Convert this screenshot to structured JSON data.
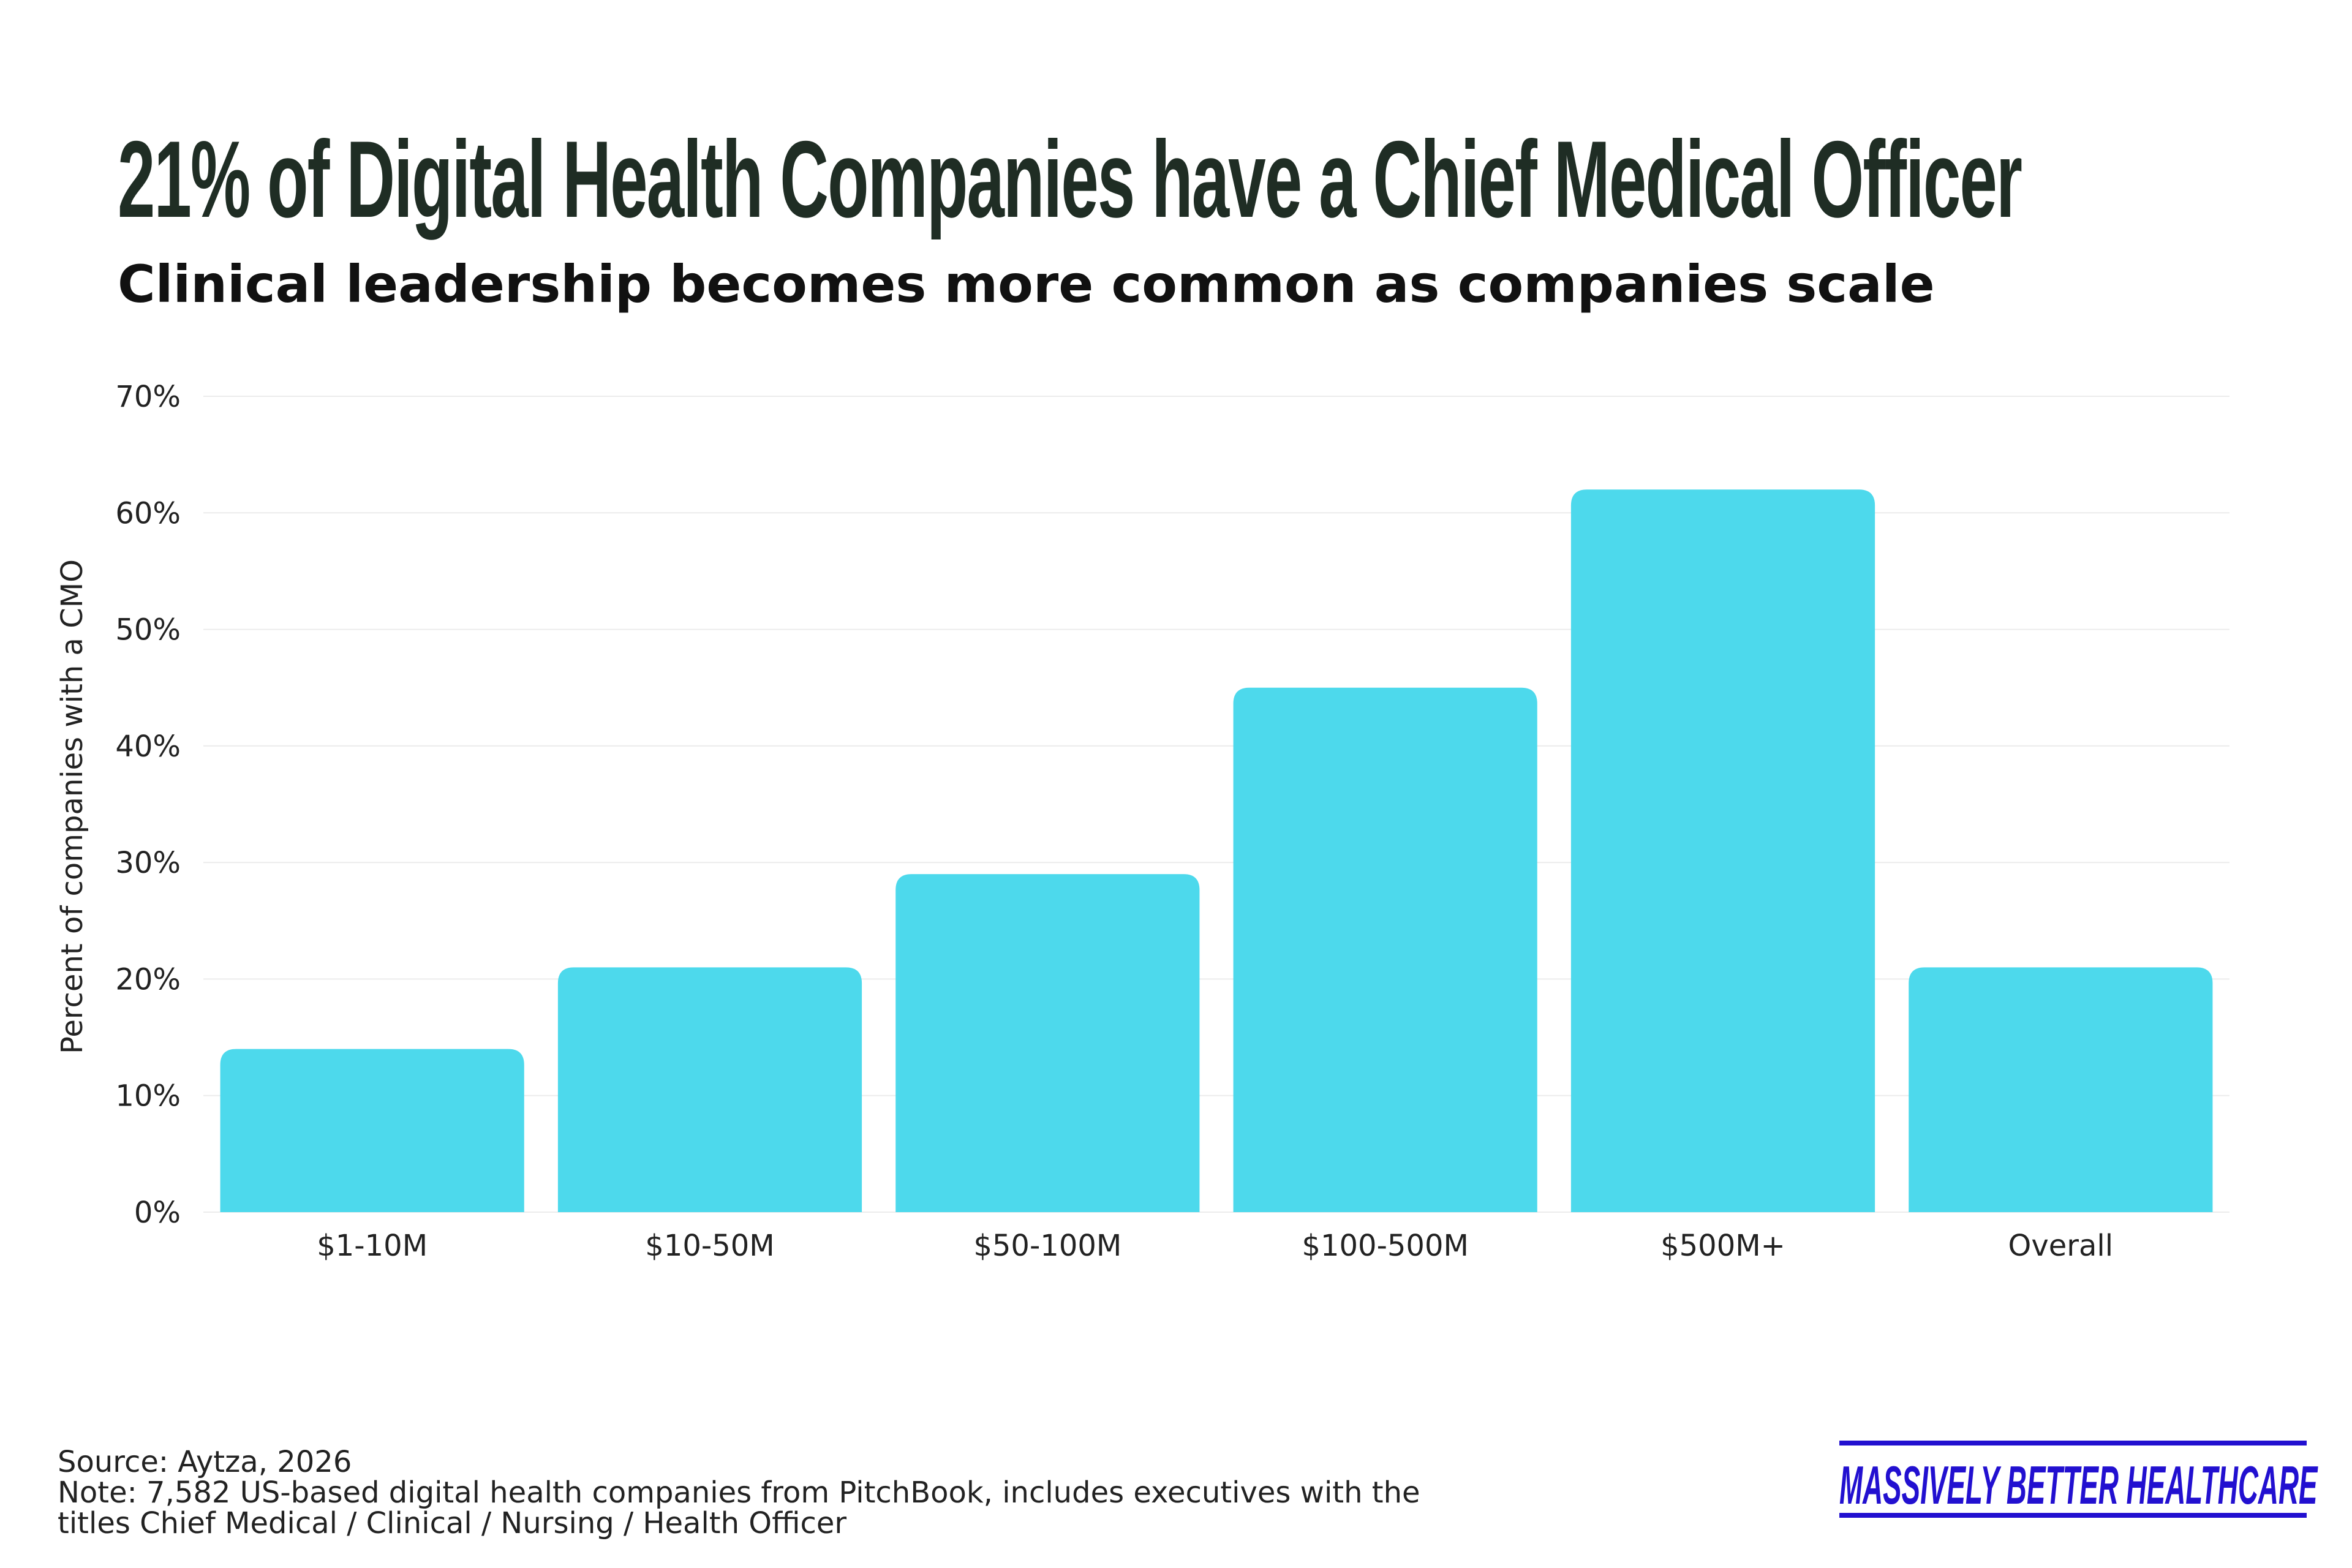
{
  "chart_data": {
    "type": "bar",
    "title": "21% of Digital Health Companies have a Chief Medical Officer",
    "subtitle": "Clinical leadership becomes more common as companies scale",
    "categories": [
      "$1-10M",
      "$10-50M",
      "$50-100M",
      "$100-500M",
      "$500M+",
      "Overall"
    ],
    "values": [
      14,
      21,
      29,
      45,
      62,
      21
    ],
    "xlabel": "",
    "ylabel": "Percent of companies with a CMO",
    "ylim": [
      0,
      70
    ],
    "yticks": [
      0,
      10,
      20,
      30,
      40,
      50,
      60,
      70
    ],
    "ytick_labels": [
      "0%",
      "10%",
      "20%",
      "30%",
      "40%",
      "50%",
      "60%",
      "70%"
    ],
    "grid": true,
    "bar_color": "#4dd9ec"
  },
  "footer": {
    "source": "Source: Aytza, 2026",
    "note_line1": "Note: 7,582  US-based digital health companies from PitchBook, includes executives with the",
    "note_line2": "titles Chief Medical / Clinical / Nursing / Health Officer"
  },
  "logo": {
    "text": "MASSIVELY BETTER HEALTHCARE",
    "color": "#2210d0"
  }
}
